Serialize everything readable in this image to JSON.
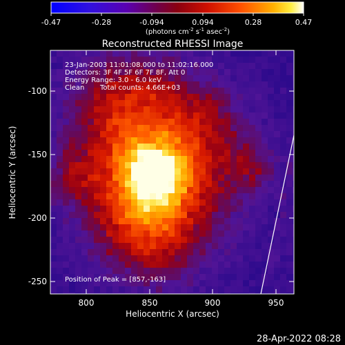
{
  "colorbar": {
    "tick_labels": [
      "-0.47",
      "-0.28",
      "-0.094",
      "0.094",
      "0.28",
      "0.47"
    ],
    "range": [
      -0.47,
      0.47
    ],
    "units_main": "(photons cm",
    "units_exp1": "-2",
    "units_mid": " s",
    "units_exp2": "-1",
    "units_mid2": " asec",
    "units_exp3": "-2",
    "units_close": ")"
  },
  "plot": {
    "title": "Reconstructed RHESSI Image",
    "xlabel": "Heliocentric X (arcsec)",
    "ylabel": "Heliocentric Y (arcsec)",
    "x_ticks": [
      "800",
      "850",
      "900",
      "950"
    ],
    "y_ticks": [
      "-100",
      "-150",
      "-200",
      "-250"
    ],
    "x_range": [
      773,
      966
    ],
    "y_range": [
      -263,
      -66
    ],
    "limb_color": "#ffffff"
  },
  "annotations": {
    "time_range": "23-Jan-2003 11:01:08.000 to 11:02:16.000",
    "detectors": "Detectors: 3F 4F 5F 6F 7F 8F, Att 0",
    "energy": "Energy Range: 3.0 - 6.0 keV",
    "method": "Clean",
    "counts": "Total counts: 4.66E+03",
    "peak": "Position of Peak = [857,-163]"
  },
  "footer": {
    "timestamp": "28-Apr-2022 08:28"
  },
  "image_info": {
    "colormap": [
      "#0000ff",
      "#5a00d0",
      "#8a0070",
      "#a00000",
      "#e02000",
      "#ff8000",
      "#ffd000",
      "#ffffff"
    ],
    "peak_x": 857,
    "peak_y": -163
  }
}
